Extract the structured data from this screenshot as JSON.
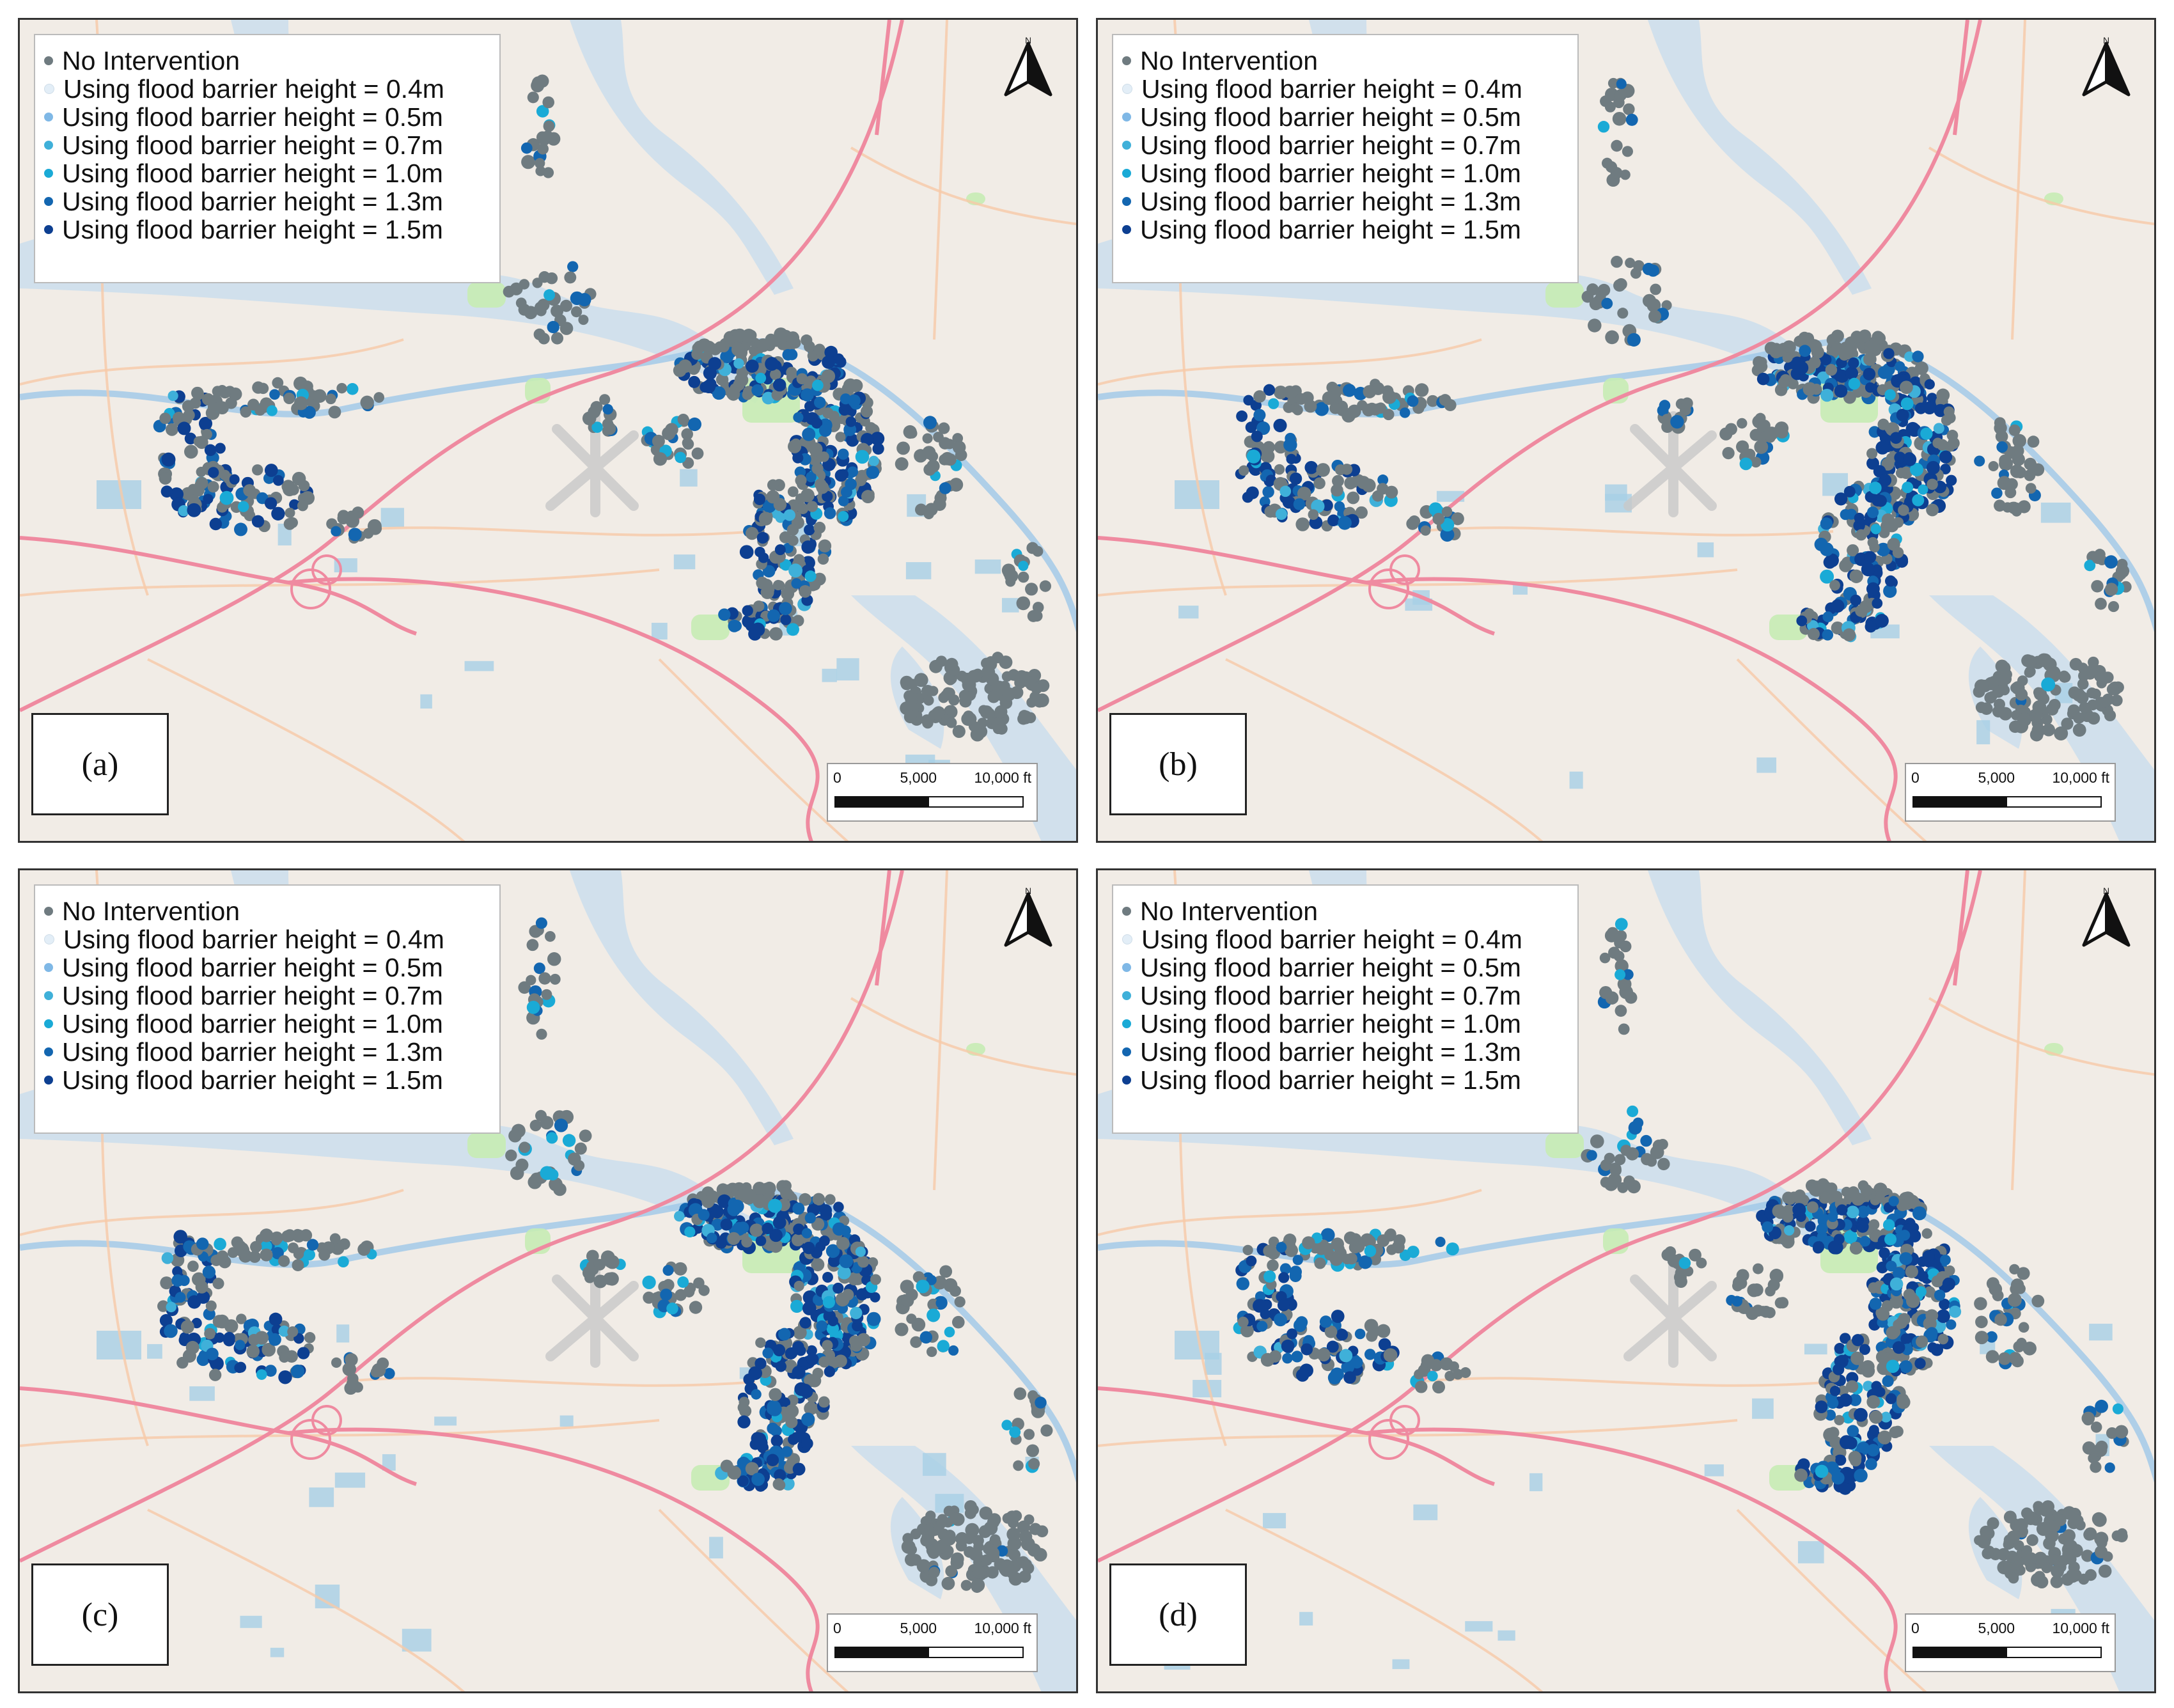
{
  "legend": {
    "entries": [
      {
        "label": "No Intervention",
        "color": "#6f7b80"
      },
      {
        "label": "Using flood barrier height = 0.4m",
        "color": "#e3eef7"
      },
      {
        "label": "Using flood barrier height = 0.5m",
        "color": "#7fb8e6"
      },
      {
        "label": "Using flood barrier height = 0.7m",
        "color": "#3fb0d9"
      },
      {
        "label": "Using flood barrier height = 1.0m",
        "color": "#1aaad6"
      },
      {
        "label": "Using flood barrier height = 1.3m",
        "color": "#1366b0"
      },
      {
        "label": "Using flood barrier height = 1.5m",
        "color": "#0d3f91"
      }
    ]
  },
  "scale_bar": {
    "tick0": "0",
    "tick1": "5,000",
    "tick2": "10,000 ft"
  },
  "north_arrow": {
    "icon": "north-arrow-icon",
    "letter": "N"
  },
  "panels": [
    {
      "label": "(a)"
    },
    {
      "label": "(b)"
    },
    {
      "label": "(c)"
    },
    {
      "label": "(d)"
    }
  ],
  "map_colors": {
    "land": "#f1ece6",
    "water": "#c6dcee",
    "river": "#9fc8e8",
    "park": "#c7ecb4",
    "highway": "#ef8aa0",
    "road": "#f7c9a8",
    "pond": "#a8cfe6"
  }
}
